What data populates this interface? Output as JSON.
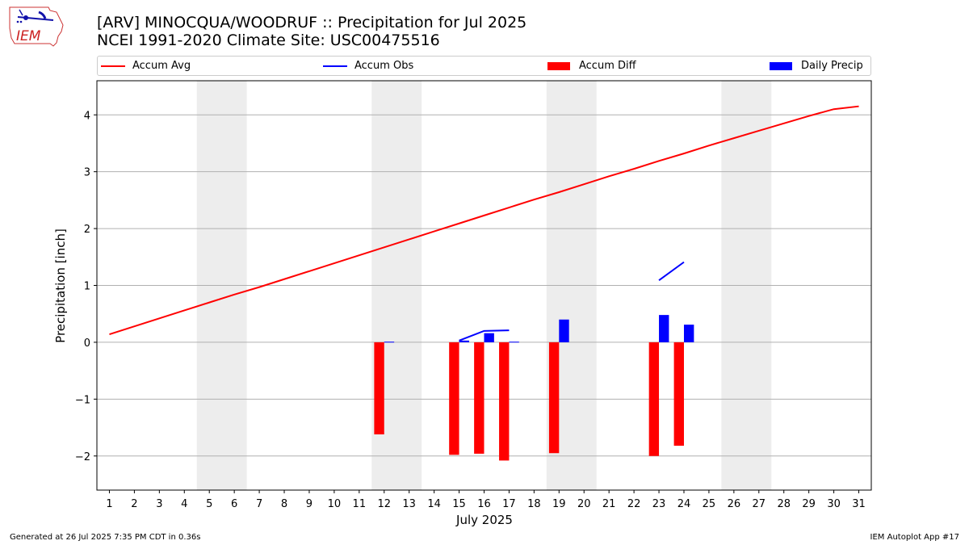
{
  "header": {
    "title": "[ARV] MINOCQUA/WOODRUF :: Precipitation for Jul 2025",
    "subtitle": "NCEI 1991-2020 Climate Site: USC00475516",
    "logo_text": "IEM"
  },
  "footer": {
    "generated": "Generated at 26 Jul 2025 7:35 PM CDT in 0.36s",
    "app": "IEM Autoplot App #17"
  },
  "colors": {
    "accum_avg": "#ff0000",
    "accum_obs": "#0000ff",
    "accum_diff": "#ff0000",
    "daily_precip": "#0000ff",
    "weekend_shade": "#ededed",
    "grid": "#b0b0b0"
  },
  "chart_data": {
    "type": "bar",
    "xlabel": "July 2025",
    "ylabel": "Precipitation [inch]",
    "xlim": [
      0.5,
      31.5
    ],
    "ylim": [
      -2.6,
      4.6
    ],
    "days": [
      1,
      2,
      3,
      4,
      5,
      6,
      7,
      8,
      9,
      10,
      11,
      12,
      13,
      14,
      15,
      16,
      17,
      18,
      19,
      20,
      21,
      22,
      23,
      24,
      25,
      26,
      27,
      28,
      29,
      30,
      31
    ],
    "y_ticks": [
      {
        "value": -2,
        "label": "−2"
      },
      {
        "value": -1,
        "label": "−1"
      },
      {
        "value": 0,
        "label": "0"
      },
      {
        "value": 1,
        "label": "1"
      },
      {
        "value": 2,
        "label": "2"
      },
      {
        "value": 3,
        "label": "3"
      },
      {
        "value": 4,
        "label": "4"
      }
    ],
    "grid": "horizontal",
    "legend_position": "top",
    "weekend_ranges": [
      [
        5,
        6
      ],
      [
        12,
        13
      ],
      [
        19,
        20
      ],
      [
        26,
        27
      ]
    ],
    "legend": [
      {
        "label": "Accum Avg",
        "kind": "line",
        "color": "#ff0000"
      },
      {
        "label": "Accum Obs",
        "kind": "line",
        "color": "#0000ff"
      },
      {
        "label": "Accum Diff",
        "kind": "bar",
        "color": "#ff0000"
      },
      {
        "label": "Daily Precip",
        "kind": "bar",
        "color": "#0000ff"
      }
    ],
    "series": [
      {
        "name": "Accum Avg",
        "type": "line",
        "x": [
          1,
          2,
          3,
          4,
          5,
          6,
          7,
          8,
          9,
          10,
          11,
          12,
          13,
          14,
          15,
          16,
          17,
          18,
          19,
          20,
          21,
          22,
          23,
          24,
          25,
          26,
          27,
          28,
          29,
          30,
          31
        ],
        "y": [
          0.14,
          0.28,
          0.42,
          0.56,
          0.7,
          0.84,
          0.97,
          1.11,
          1.25,
          1.39,
          1.53,
          1.67,
          1.81,
          1.95,
          2.09,
          2.23,
          2.37,
          2.51,
          2.64,
          2.78,
          2.92,
          3.05,
          3.19,
          3.32,
          3.46,
          3.59,
          3.72,
          3.85,
          3.98,
          4.1,
          4.15
        ]
      },
      {
        "name": "Accum Obs",
        "type": "line",
        "segments": [
          {
            "x": [
              15,
              16,
              17
            ],
            "y": [
              0.03,
              0.2,
              0.21
            ]
          },
          {
            "x": [
              23,
              24
            ],
            "y": [
              1.09,
              1.41
            ]
          }
        ]
      },
      {
        "name": "Accum Diff",
        "type": "bar",
        "x": [
          12,
          15,
          16,
          17,
          19,
          23,
          24
        ],
        "y": [
          -1.62,
          -1.98,
          -1.96,
          -2.08,
          -1.95,
          -2.0,
          -1.82
        ]
      },
      {
        "name": "Daily Precip",
        "type": "bar",
        "x": [
          12,
          15,
          16,
          17,
          19,
          23,
          24
        ],
        "y": [
          0.01,
          0.03,
          0.16,
          0.01,
          0.4,
          0.48,
          0.31
        ]
      }
    ]
  }
}
